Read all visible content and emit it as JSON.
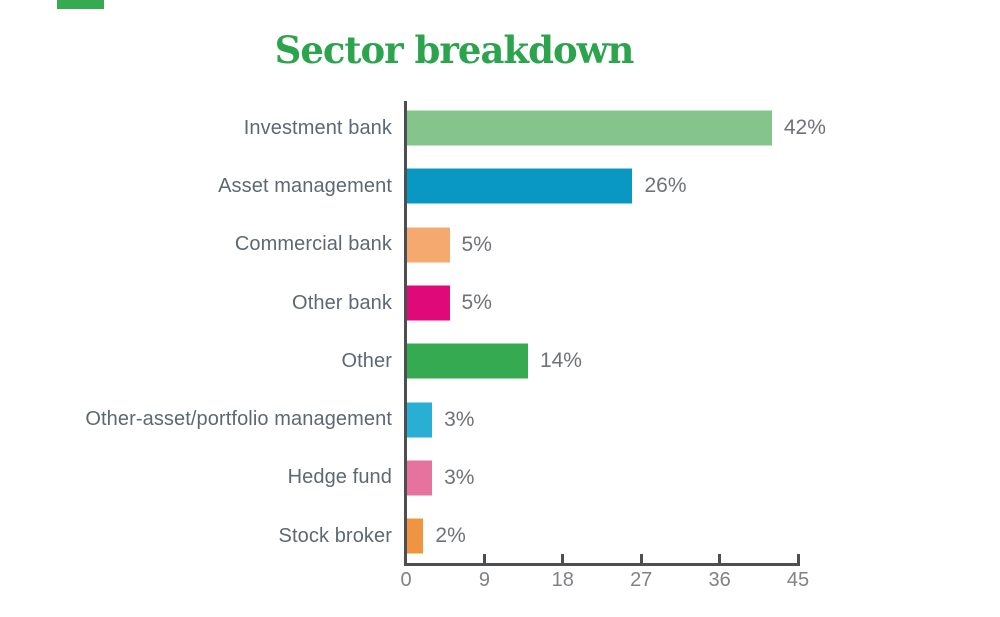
{
  "title": {
    "text": "Sector breakdown",
    "color": "#2ca44e"
  },
  "decor": {
    "top_left_mark_color": "#35aa50"
  },
  "chart_data": {
    "type": "bar",
    "orientation": "horizontal",
    "title": "Sector breakdown",
    "categories": [
      "Investment bank",
      "Asset management",
      "Commercial bank",
      "Other bank",
      "Other",
      "Other-asset/portfolio management",
      "Hedge fund",
      "Stock broker"
    ],
    "values": [
      42,
      26,
      5,
      5,
      14,
      3,
      3,
      2
    ],
    "value_labels": [
      "42%",
      "26%",
      "5%",
      "5%",
      "14%",
      "3%",
      "3%",
      "2%"
    ],
    "bar_colors": [
      "#85c58b",
      "#0898c2",
      "#f5a96e",
      "#e0097a",
      "#35aa50",
      "#29afd3",
      "#e5739d",
      "#ef9440"
    ],
    "x_ticks": [
      0,
      9,
      18,
      27,
      36,
      45
    ],
    "x_tick_labels": [
      "0",
      "9",
      "18",
      "27",
      "36",
      "45"
    ],
    "xlim": [
      0,
      45
    ],
    "xlabel": "",
    "ylabel": "",
    "grid": false,
    "legend": false,
    "colors": {
      "axis": "#4d4e50",
      "category_label": "#5e6872",
      "value_label": "#6f7276",
      "tick_label": "#7f8286"
    }
  }
}
